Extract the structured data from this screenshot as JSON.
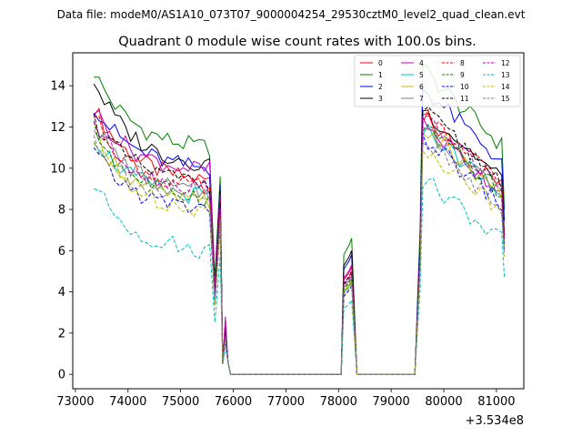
{
  "suptitle": "Data file: modeM0/AS1A10_073T07_9000004254_29530cztM0_level2_quad_clean.evt",
  "chart_data": {
    "type": "line",
    "title": "Quadrant 0 module wise count rates with 100.0s bins.",
    "xlabel": "",
    "ylabel": "",
    "x_offset_label": "+3.534e8",
    "xlim": [
      72950,
      81520
    ],
    "ylim": [
      -0.7,
      15.6
    ],
    "xticks": [
      73000,
      74000,
      75000,
      76000,
      77000,
      78000,
      79000,
      80000,
      81000
    ],
    "xtick_labels": [
      "73000",
      "74000",
      "75000",
      "76000",
      "77000",
      "78000",
      "79000",
      "80000",
      "81000"
    ],
    "yticks": [
      0,
      2,
      4,
      6,
      8,
      10,
      12,
      14
    ],
    "ytick_labels": [
      "0",
      "2",
      "4",
      "6",
      "8",
      "10",
      "12",
      "14"
    ],
    "grid": false,
    "legend_position": "top-right",
    "legend_columns": 4,
    "bin_width": 100,
    "segments": [
      {
        "start": 73350,
        "end": 75850
      },
      {
        "start": 75950,
        "end": 78050
      },
      {
        "start": 78050,
        "end": 78350
      },
      {
        "start": 78450,
        "end": 79450
      },
      {
        "start": 79550,
        "end": 81150
      }
    ],
    "series": [
      {
        "name": "0",
        "color": "#ff0000",
        "dash": "solid",
        "level1": 13.0,
        "level2": 9.4,
        "level3": 10.6,
        "peak1": 8.8,
        "peak2": 2.1,
        "peak3": 5.2
      },
      {
        "name": "1",
        "color": "#008000",
        "dash": "solid",
        "level1": 14.7,
        "level2": 11.0,
        "level3": 12.9,
        "peak1": 9.6,
        "peak2": 2.3,
        "peak3": 6.6
      },
      {
        "name": "2",
        "color": "#0000ff",
        "dash": "solid",
        "level1": 13.1,
        "level2": 10.0,
        "level3": 12.0,
        "peak1": 9.2,
        "peak2": 2.2,
        "peak3": 5.8
      },
      {
        "name": "3",
        "color": "#000000",
        "dash": "solid",
        "level1": 14.3,
        "level2": 10.2,
        "level3": 11.0,
        "peak1": 8.9,
        "peak2": 2.2,
        "peak3": 6.0
      },
      {
        "name": "4",
        "color": "#bf00bf",
        "dash": "solid",
        "level1": 12.9,
        "level2": 9.9,
        "level3": 10.3,
        "peak1": 8.7,
        "peak2": 2.8,
        "peak3": 5.3
      },
      {
        "name": "5",
        "color": "#00bfbf",
        "dash": "solid",
        "level1": 11.6,
        "level2": 8.6,
        "level3": 10.1,
        "peak1": 7.6,
        "peak2": 1.8,
        "peak3": 4.5
      },
      {
        "name": "6",
        "color": "#bfbf00",
        "dash": "solid",
        "level1": 11.8,
        "level2": 8.3,
        "level3": 10.0,
        "peak1": 7.5,
        "peak2": 1.8,
        "peak3": 4.6
      },
      {
        "name": "7",
        "color": "#808080",
        "dash": "solid",
        "level1": 12.2,
        "level2": 8.8,
        "level3": 10.2,
        "peak1": 8.0,
        "peak2": 1.9,
        "peak3": 4.8
      },
      {
        "name": "8",
        "color": "#ff0000",
        "dash": "dashed",
        "level1": 12.6,
        "level2": 9.0,
        "level3": 10.7,
        "peak1": 8.5,
        "peak2": 2.0,
        "peak3": 5.0
      },
      {
        "name": "9",
        "color": "#008000",
        "dash": "dashed",
        "level1": 11.9,
        "level2": 8.6,
        "level3": 10.2,
        "peak1": 7.8,
        "peak2": 1.9,
        "peak3": 4.7
      },
      {
        "name": "10",
        "color": "#0000ff",
        "dash": "dashed",
        "level1": 10.8,
        "level2": 8.0,
        "level3": 9.6,
        "peak1": 7.2,
        "peak2": 1.7,
        "peak3": 4.3
      },
      {
        "name": "11",
        "color": "#000000",
        "dash": "dashed",
        "level1": 12.4,
        "level2": 9.3,
        "level3": 10.9,
        "peak1": 8.3,
        "peak2": 2.0,
        "peak3": 5.0
      },
      {
        "name": "12",
        "color": "#bf00bf",
        "dash": "dashed",
        "level1": 12.3,
        "level2": 9.0,
        "level3": 10.6,
        "peak1": 8.1,
        "peak2": 1.9,
        "peak3": 4.9
      },
      {
        "name": "13",
        "color": "#00bfbf",
        "dash": "dashed",
        "level1": 9.2,
        "level2": 6.0,
        "level3": 7.6,
        "peak1": 5.7,
        "peak2": 1.3,
        "peak3": 3.6
      },
      {
        "name": "14",
        "color": "#bfbf00",
        "dash": "dashed",
        "level1": 11.3,
        "level2": 8.0,
        "level3": 9.2,
        "peak1": 7.3,
        "peak2": 1.7,
        "peak3": 4.4
      },
      {
        "name": "15",
        "color": "#808080",
        "dash": "dashed",
        "level1": 11.5,
        "level2": 8.4,
        "level3": 9.5,
        "peak1": 7.6,
        "peak2": 1.8,
        "peak3": 4.5
      }
    ]
  }
}
